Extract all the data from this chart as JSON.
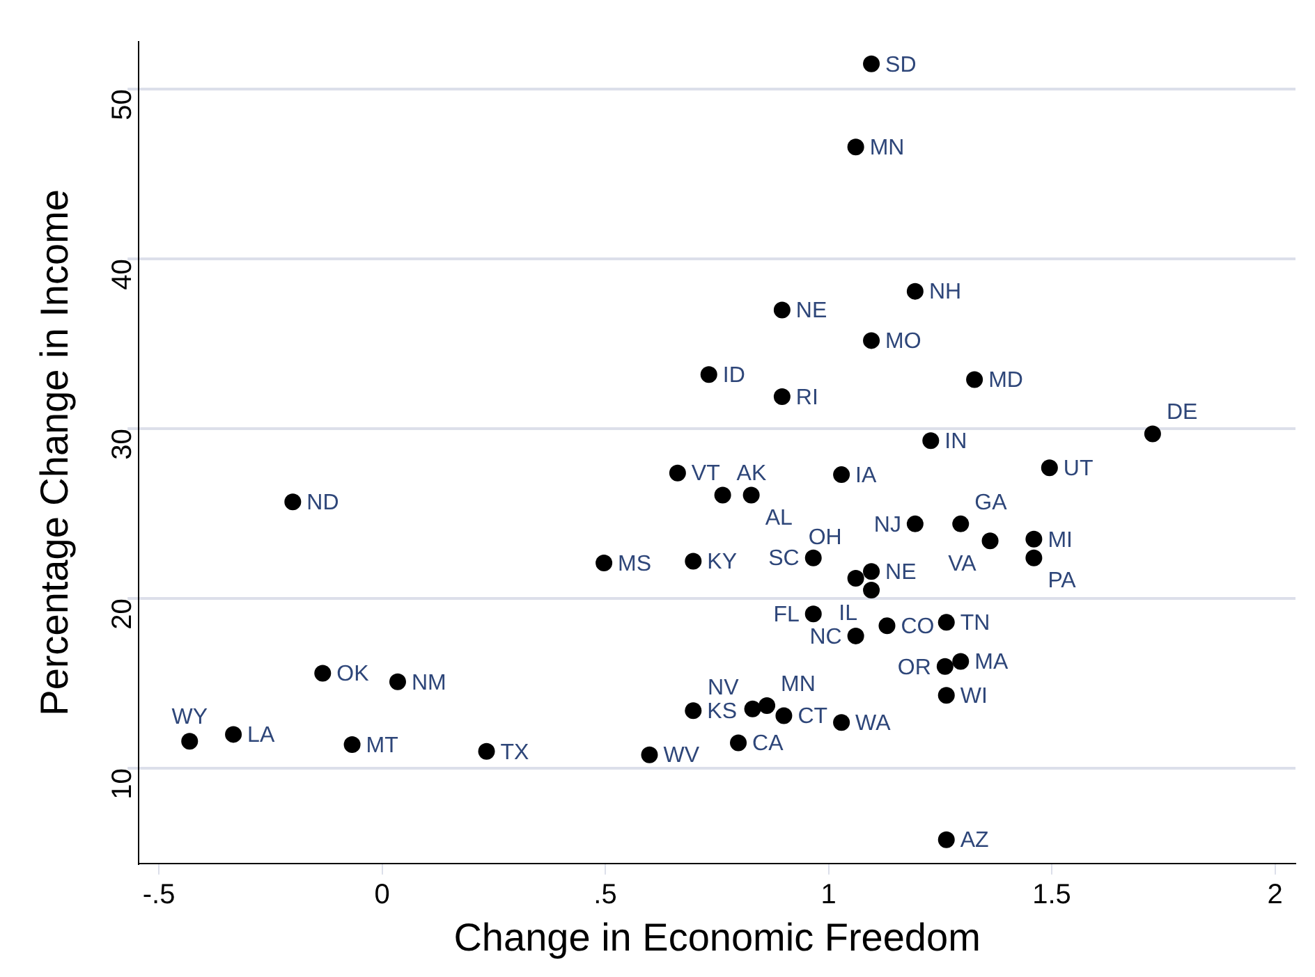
{
  "chart_data": {
    "type": "scatter",
    "xlabel": "Change in Economic Freedom",
    "ylabel": "Percentage Change in Income",
    "xlim": [
      -0.545,
      2.046
    ],
    "xticks": [
      {
        "value": -0.5,
        "label": "-.5"
      },
      0,
      {
        "value": 0.5,
        "label": ".5"
      },
      1,
      1.5,
      2
    ],
    "ylim": [
      4.4,
      52.8
    ],
    "yticks": [
      10,
      20,
      30,
      40,
      50
    ],
    "grid": "y",
    "legend": false,
    "marker": "circle",
    "series": [
      {
        "color": "#000000",
        "x": [
          1.096,
          1.061,
          1.194,
          0.896,
          1.096,
          0.732,
          1.327,
          0.896,
          1.726,
          1.229,
          1.495,
          0.662,
          1.029,
          0.763,
          0.827,
          -0.2,
          1.194,
          1.296,
          1.46,
          1.362,
          1.46,
          0.497,
          0.697,
          0.966,
          1.096,
          1.061,
          1.096,
          0.966,
          1.264,
          1.131,
          1.061,
          1.296,
          1.261,
          1.264,
          0.697,
          0.83,
          0.862,
          0.9,
          1.029,
          0.798,
          0.599,
          1.264,
          -0.431,
          -0.333,
          -0.067,
          0.234,
          -0.133,
          0.035
        ],
        "values": [
          51.5,
          46.6,
          38.1,
          37.0,
          35.2,
          33.2,
          32.9,
          31.9,
          29.7,
          29.3,
          27.7,
          27.4,
          27.3,
          26.1,
          26.1,
          25.7,
          24.4,
          24.4,
          23.5,
          23.4,
          22.4,
          22.1,
          22.2,
          22.4,
          21.6,
          21.2,
          20.5,
          19.1,
          18.6,
          18.4,
          17.8,
          16.3,
          16.0,
          14.3,
          13.4,
          13.5,
          13.7,
          13.1,
          12.7,
          11.5,
          10.8,
          5.8,
          11.6,
          12.0,
          11.4,
          11.0,
          15.6,
          15.1
        ],
        "value_labels": [
          "SD",
          "MN",
          "NH",
          "NE",
          "MO",
          "ID",
          "MD",
          "RI",
          "DE",
          "IN",
          "UT",
          "VT",
          "IA",
          "AK",
          "AL",
          "ND",
          "NJ",
          "GA",
          "MI",
          "VA",
          "PA",
          "MS",
          "KY",
          "SC",
          "NE",
          "OH",
          "IL",
          "FL",
          "TN",
          "CO",
          "NC",
          "MA",
          "OR",
          "WI",
          "KS",
          "NV",
          "MN",
          "CT",
          "WA",
          "CA",
          "WV",
          "AZ",
          "WY",
          "LA",
          "MT",
          "TX",
          "OK",
          "NM"
        ]
      }
    ]
  }
}
